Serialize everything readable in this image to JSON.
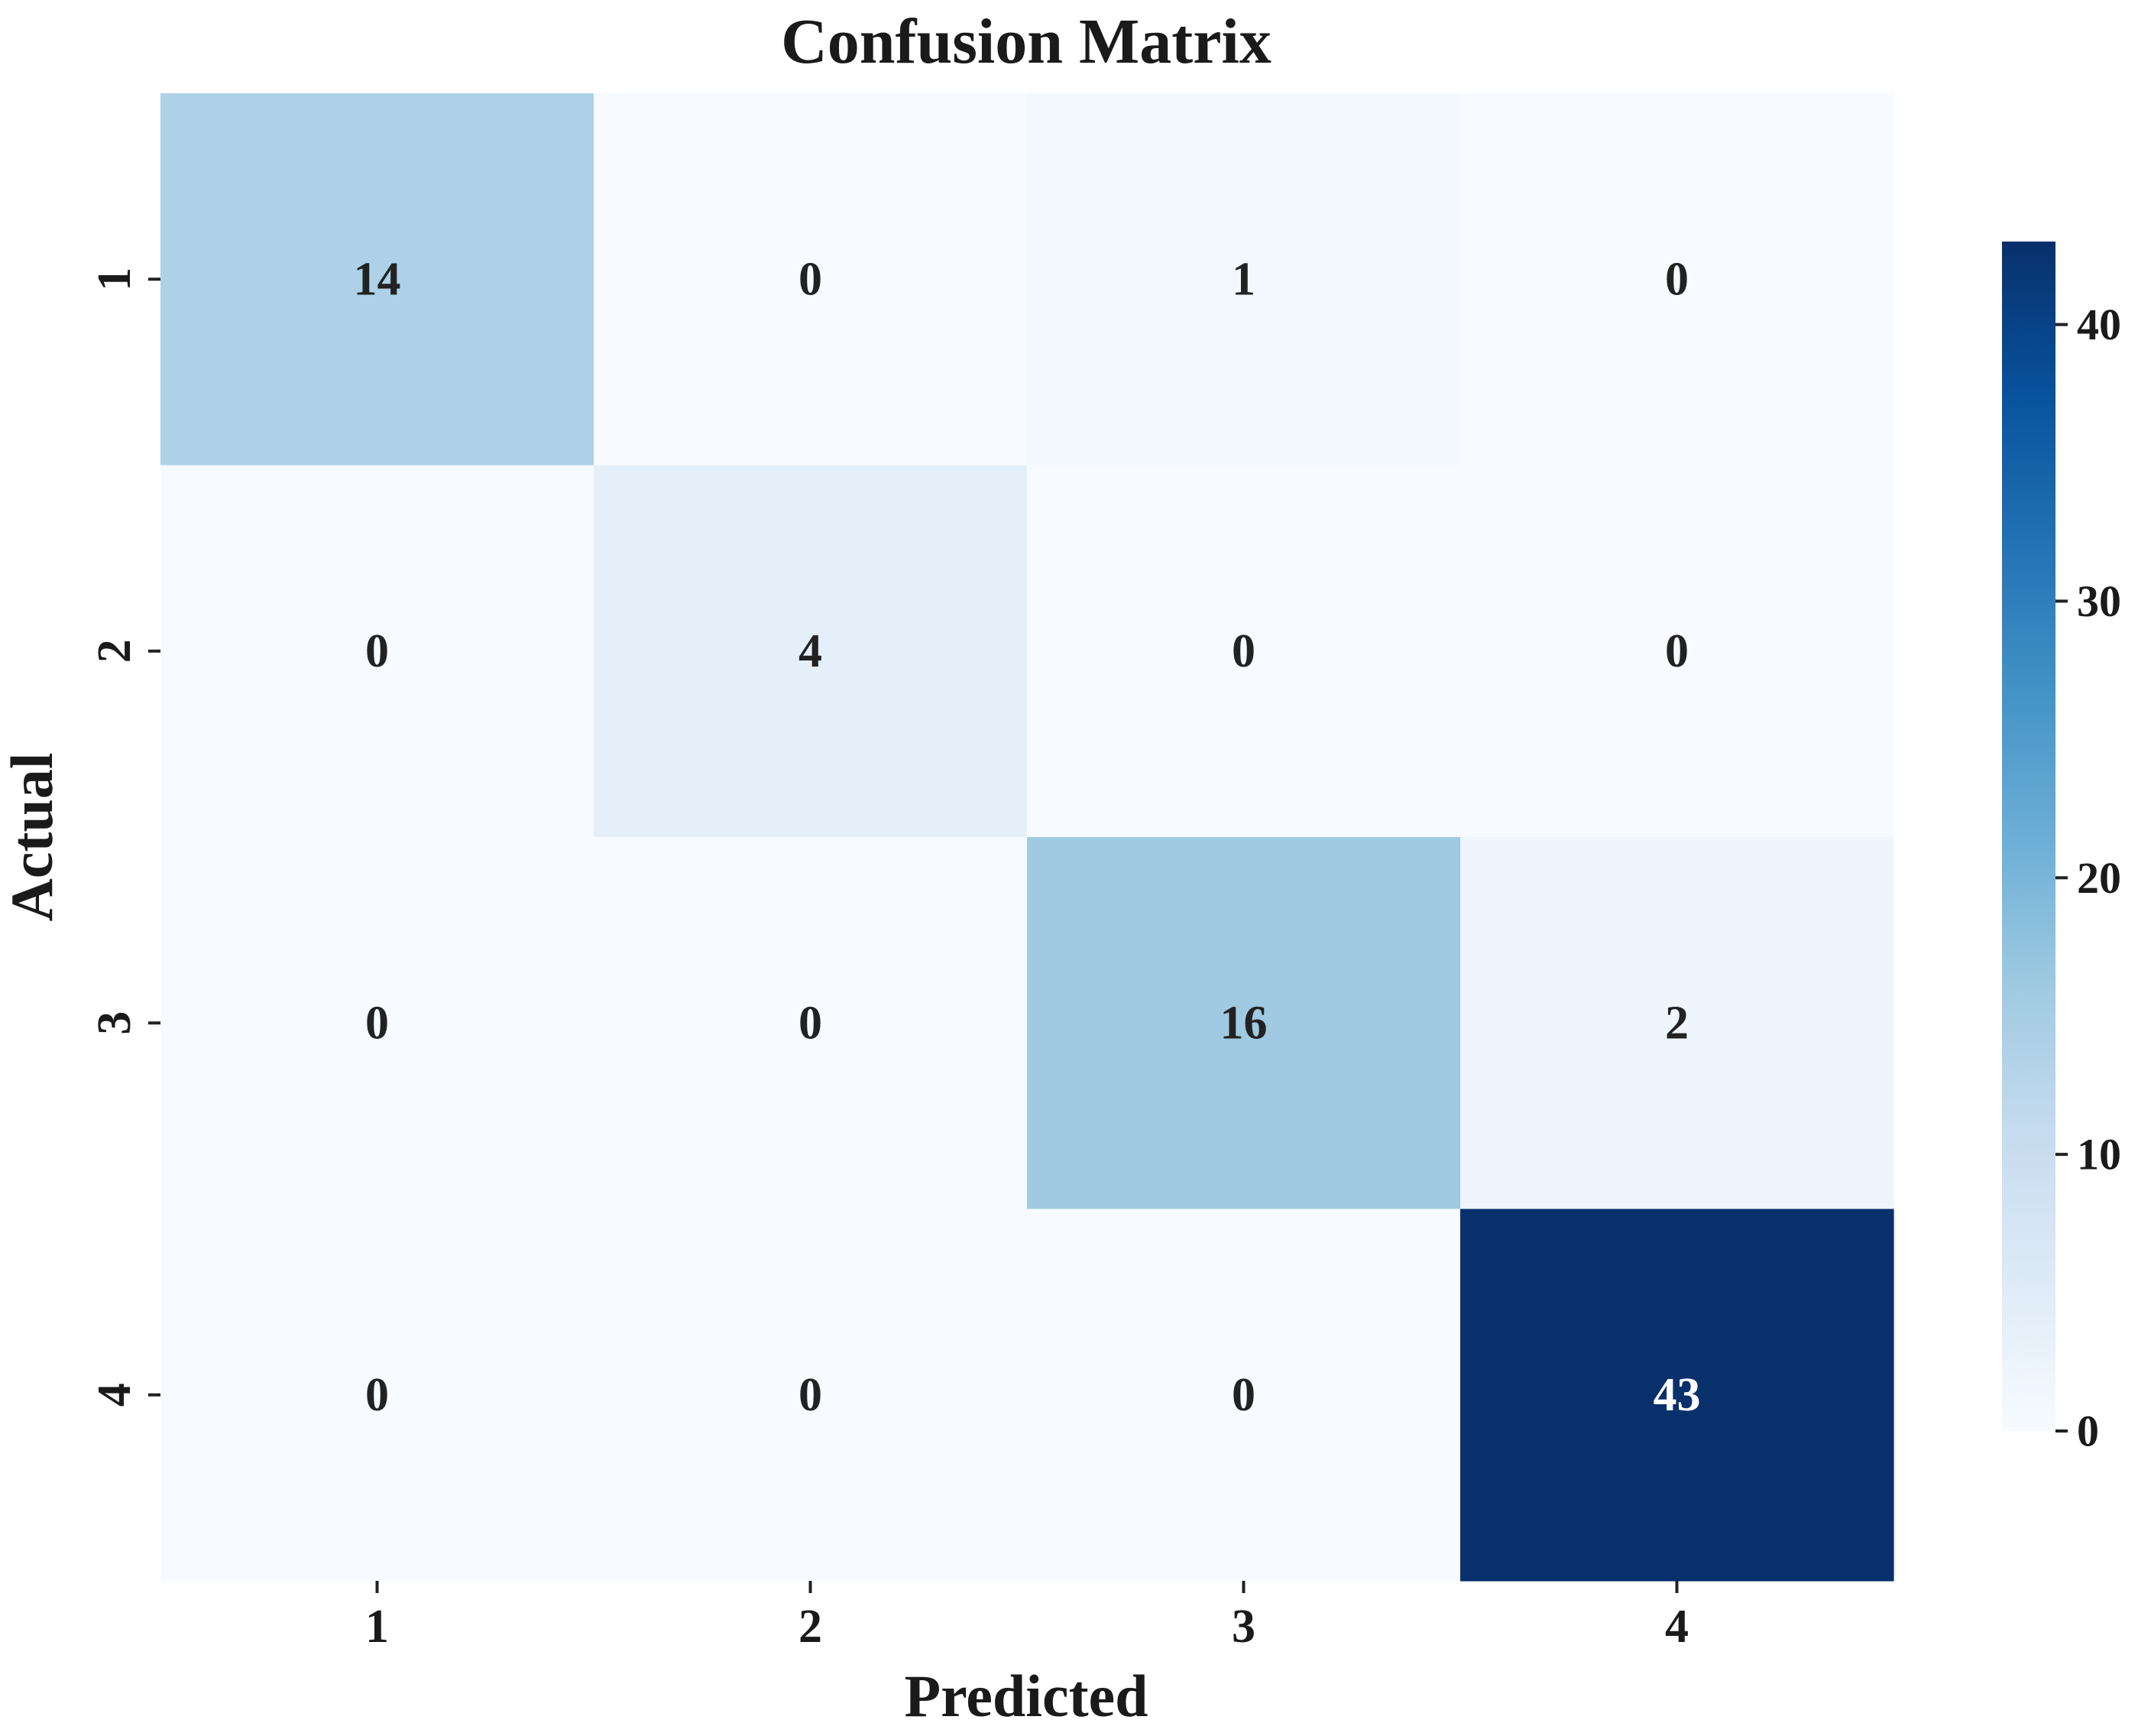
{
  "chart_data": {
    "type": "heatmap",
    "title": "Confusion Matrix",
    "xlabel": "Predicted",
    "ylabel": "Actual",
    "x_categories": [
      "1",
      "2",
      "3",
      "4"
    ],
    "y_categories": [
      "1",
      "2",
      "3",
      "4"
    ],
    "matrix": [
      [
        14,
        0,
        1,
        0
      ],
      [
        0,
        4,
        0,
        0
      ],
      [
        0,
        0,
        16,
        2
      ],
      [
        0,
        0,
        0,
        43
      ]
    ],
    "colormap": "Blues",
    "colorbar": {
      "min": 0,
      "max": 43,
      "ticks": [
        0,
        10,
        20,
        30,
        40
      ],
      "tick_labels": [
        "0",
        "10",
        "20",
        "30",
        "40"
      ]
    },
    "colors": {
      "low": "#f7fbff",
      "high": "#08306b",
      "annotation_dark": "#222222",
      "annotation_light": "#ffffff"
    }
  }
}
